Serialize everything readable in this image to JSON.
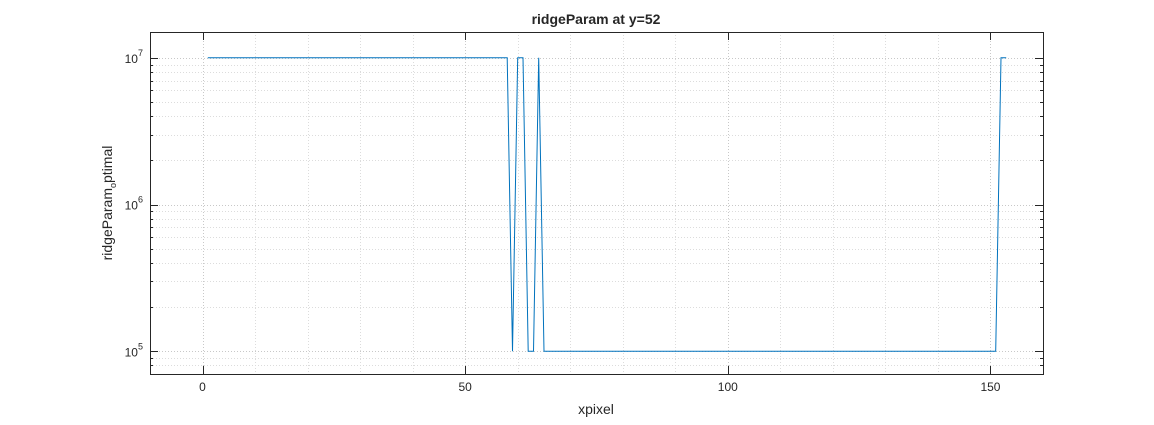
{
  "chart_data": {
    "type": "line",
    "title": "ridgeParam at y=52",
    "xlabel": "xpixel",
    "ylabel": "ridgeParam_optimal",
    "ylabel_parts": {
      "before": "ridgeParam",
      "subscript": "o",
      "after": "ptimal"
    },
    "xlim": [
      -10,
      160
    ],
    "ylim": [
      70000,
      15000000
    ],
    "yscale": "log",
    "grid": true,
    "minor_grid": true,
    "x_ticks": [
      0,
      50,
      100,
      150
    ],
    "x_tick_labels": [
      "0",
      "50",
      "100",
      "150"
    ],
    "y_ticks": [
      100000,
      1000000,
      10000000
    ],
    "y_tick_labels": [
      {
        "base": "10",
        "exp": "5"
      },
      {
        "base": "10",
        "exp": "6"
      },
      {
        "base": "10",
        "exp": "7"
      }
    ],
    "series": [
      {
        "color": "#0072bd",
        "x": [
          1,
          58,
          59,
          60,
          61,
          62,
          63,
          64,
          65,
          151,
          152,
          153
        ],
        "y": [
          10000000,
          10000000,
          100000,
          10000000,
          10000000,
          100000,
          100000,
          10000000,
          100000,
          100000,
          10000000,
          10000000
        ]
      }
    ]
  }
}
